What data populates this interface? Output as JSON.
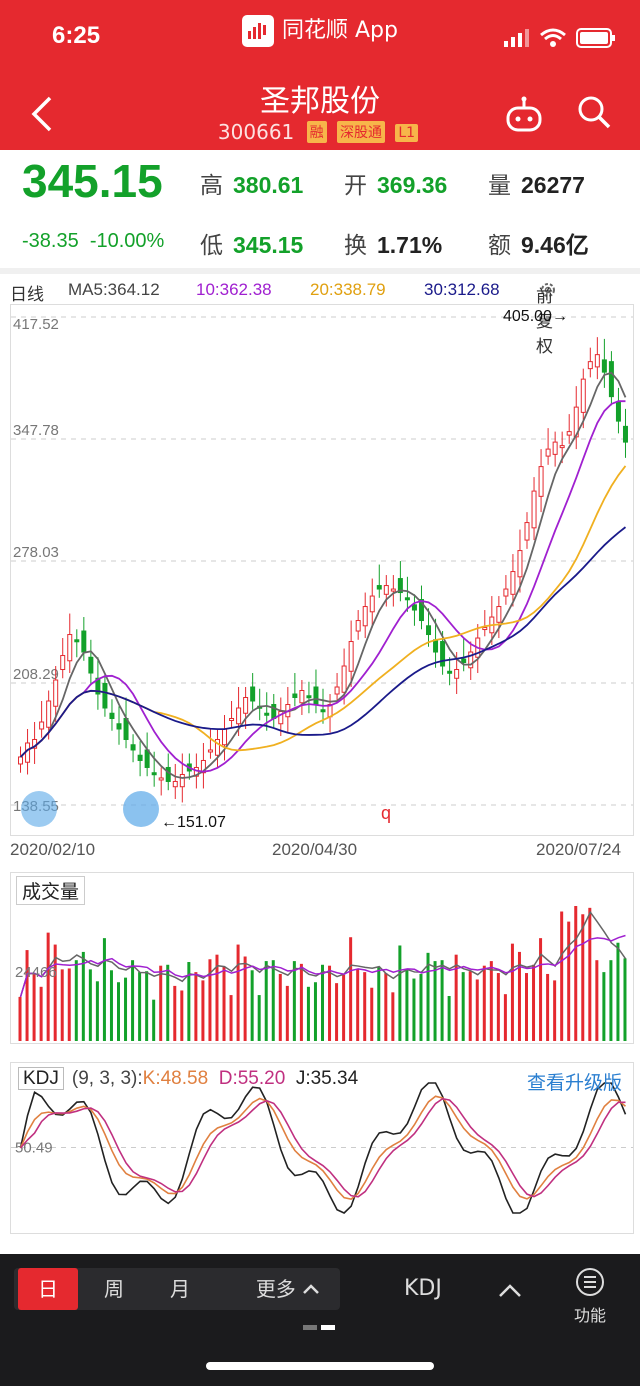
{
  "status": {
    "time": "6:25"
  },
  "app": {
    "name": "同花顺 App"
  },
  "stock": {
    "name": "圣邦股份",
    "code": "300661",
    "tags": [
      "融",
      "深股通",
      "L1"
    ]
  },
  "quote": {
    "price": "345.15",
    "change": "-38.35",
    "change_pct": "-10.00%",
    "high_label": "高",
    "high": "380.61",
    "open_label": "开",
    "open": "369.36",
    "volume_label": "量",
    "volume": "26277",
    "low_label": "低",
    "low": "345.15",
    "turnover_label": "换",
    "turnover": "1.71%",
    "amount_label": "额",
    "amount": "9.46亿"
  },
  "ma": {
    "period": "日线",
    "ma5": "MA5:364.12",
    "ma10": "10:362.38",
    "ma20": "20:338.79",
    "ma30": "30:312.68",
    "adjust": "前复权"
  },
  "colors": {
    "up": "#e5292f",
    "down": "#13a12a",
    "ma5": "#666666",
    "ma10": "#a020d0",
    "ma20": "#f0b020",
    "ma30": "#1a1a8a",
    "k": "#e08040",
    "d": "#c03080",
    "j": "#222222"
  },
  "chart_data": {
    "type": "candlestick",
    "ylim": [
      138.55,
      417.52
    ],
    "y_ticks": [
      "417.52",
      "347.78",
      "278.03",
      "208.29",
      "138.55"
    ],
    "x_labels": [
      "2020/02/10",
      "2020/04/30",
      "2020/07/24"
    ],
    "annotations": {
      "max": "405.00→",
      "min": "←151.07",
      "marker": "q"
    },
    "closes": [
      166,
      174,
      176,
      186,
      198,
      210,
      224,
      236,
      232,
      226,
      214,
      202,
      194,
      188,
      182,
      176,
      170,
      164,
      160,
      156,
      154,
      152,
      152,
      156,
      158,
      160,
      164,
      170,
      176,
      182,
      188,
      194,
      200,
      198,
      194,
      190,
      188,
      192,
      196,
      200,
      204,
      200,
      196,
      192,
      196,
      206,
      218,
      232,
      244,
      252,
      258,
      262,
      264,
      262,
      260,
      256,
      250,
      244,
      236,
      226,
      218,
      214,
      216,
      220,
      226,
      234,
      240,
      246,
      252,
      262,
      272,
      284,
      300,
      318,
      332,
      342,
      346,
      344,
      352,
      366,
      382,
      392,
      396,
      386,
      372,
      358,
      346
    ],
    "volume_label": "成交量",
    "volume_ref": "24466"
  },
  "kdj": {
    "label": "KDJ",
    "params": "(9, 3, 3):",
    "k": "K:48.58",
    "d": "D:55.20",
    "j": "J:35.34",
    "ref": "50.49",
    "upgrade": "查看升级版"
  },
  "bottom": {
    "periods": [
      "日",
      "周",
      "月",
      "更多"
    ],
    "indicator": "KDJ",
    "func_label": "功能"
  }
}
